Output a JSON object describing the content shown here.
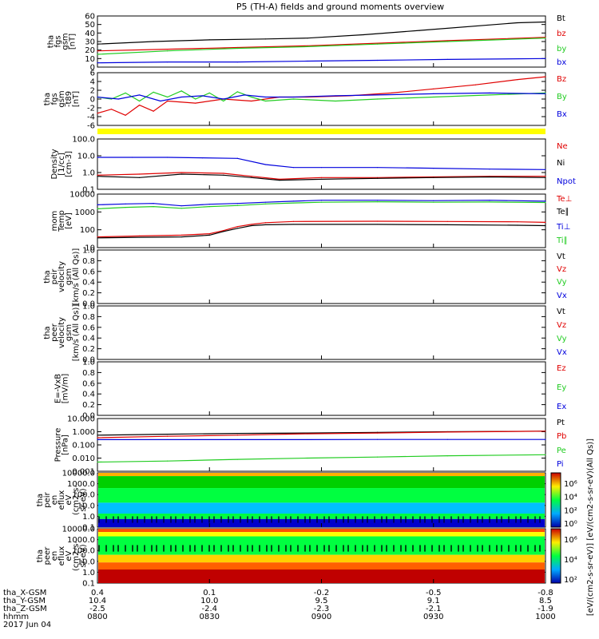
{
  "title": "P5 (TH-A) fields and ground moments overview",
  "colors": {
    "black": "#000000",
    "red": "#e00000",
    "green": "#22cc22",
    "blue": "#0000dd",
    "yellow": "#ffff00"
  },
  "chart_data": [
    {
      "type": "line",
      "id": "fgs_btot",
      "ylabel_lines": [
        "tha",
        "fgs",
        "gsm",
        "[nT]"
      ],
      "ylim": [
        0,
        60
      ],
      "yticks": [
        "60",
        "50",
        "40",
        "30",
        "20",
        "10",
        "0"
      ],
      "legend": [
        "Bt",
        "bz",
        "by",
        "bx"
      ],
      "series": [
        {
          "name": "Bt",
          "color": "black",
          "x": [
            0,
            8,
            16,
            24,
            30,
            38,
            46,
            60,
            64
          ],
          "y": [
            27,
            30,
            32,
            33,
            34,
            38,
            43,
            52,
            53
          ]
        },
        {
          "name": "bz",
          "color": "red",
          "x": [
            0,
            10,
            20,
            30,
            40,
            50,
            64
          ],
          "y": [
            19,
            21,
            23,
            25,
            28,
            31,
            35
          ]
        },
        {
          "name": "by",
          "color": "green",
          "x": [
            0,
            10,
            20,
            30,
            40,
            50,
            64
          ],
          "y": [
            15,
            19,
            22,
            24,
            27,
            30,
            34
          ]
        },
        {
          "name": "bx",
          "color": "blue",
          "x": [
            0,
            10,
            20,
            30,
            40,
            50,
            64
          ],
          "y": [
            5,
            6,
            6,
            7,
            8,
            9,
            10
          ]
        }
      ]
    },
    {
      "type": "line",
      "id": "fgs_comp",
      "ylabel_lines": [
        "tha",
        "fgs",
        "gsm",
        "-t89",
        "[nT]"
      ],
      "ylim": [
        -7,
        6
      ],
      "yticks": [
        "6",
        "4",
        "2",
        "0",
        "-2",
        "-4",
        "-6"
      ],
      "legend": [
        "Bz",
        "By",
        "Bx"
      ],
      "series": [
        {
          "name": "Bz",
          "color": "red",
          "x": [
            0,
            2,
            4,
            6,
            8,
            10,
            14,
            18,
            22,
            26,
            30,
            36,
            42,
            48,
            54,
            60,
            64
          ],
          "y": [
            -4,
            -3,
            -4.5,
            -2,
            -3.5,
            -1,
            -1.5,
            -0.5,
            -1,
            0,
            0,
            0.3,
            1,
            2,
            3,
            4.3,
            5
          ]
        },
        {
          "name": "By",
          "color": "green",
          "x": [
            0,
            2,
            4,
            6,
            8,
            10,
            12,
            14,
            16,
            18,
            20,
            22,
            24,
            28,
            34,
            40,
            48,
            56,
            64
          ],
          "y": [
            0,
            -0.5,
            1,
            -1,
            1.2,
            0,
            1.5,
            -0.5,
            1,
            -1,
            1.3,
            0,
            -1,
            -0.5,
            -1,
            -0.5,
            0,
            0.5,
            1
          ]
        },
        {
          "name": "Bx",
          "color": "blue",
          "x": [
            0,
            3,
            6,
            9,
            12,
            15,
            18,
            21,
            24,
            28,
            34,
            40,
            48,
            56,
            64
          ],
          "y": [
            0,
            -0.5,
            0.5,
            -1,
            0,
            0.3,
            -0.5,
            0.5,
            0,
            0,
            0.3,
            0.5,
            0.8,
            1,
            0.8
          ]
        }
      ]
    },
    {
      "type": "line",
      "id": "density",
      "ylabel_lines": [
        "Density",
        "[1/cc]",
        "[cm-3]"
      ],
      "log": true,
      "ylim": [
        0.1,
        100
      ],
      "yticks": [
        "100.0",
        "10.0",
        "1.0",
        "0.1"
      ],
      "legend": [
        "Ne",
        "Ni",
        "Npot"
      ],
      "series": [
        {
          "name": "Npot",
          "color": "blue",
          "x": [
            0,
            5,
            10,
            15,
            20,
            24,
            28,
            32,
            40,
            48,
            56,
            64
          ],
          "y": [
            8,
            8,
            8,
            7.5,
            7,
            3,
            2,
            2,
            2,
            1.8,
            1.6,
            1.5
          ]
        },
        {
          "name": "Ne",
          "color": "red",
          "x": [
            0,
            6,
            12,
            18,
            22,
            26,
            32,
            40,
            48,
            56,
            64
          ],
          "y": [
            0.7,
            0.8,
            1,
            0.9,
            0.6,
            0.4,
            0.5,
            0.5,
            0.55,
            0.6,
            0.6
          ]
        },
        {
          "name": "Ni",
          "color": "black",
          "x": [
            0,
            6,
            12,
            18,
            22,
            26,
            32,
            40,
            48,
            56,
            64
          ],
          "y": [
            0.6,
            0.5,
            0.8,
            0.7,
            0.5,
            0.35,
            0.4,
            0.45,
            0.5,
            0.55,
            0.5
          ]
        }
      ]
    },
    {
      "type": "line",
      "id": "mom_temp",
      "ylabel_lines": [
        "mom",
        "Temp",
        "[eV]"
      ],
      "log": true,
      "ylim": [
        10,
        10000
      ],
      "yticks": [
        "10000",
        "1000",
        "100",
        "10"
      ],
      "legend": [
        "Te⊥",
        "Te∥",
        "Ti⊥",
        "Ti∥"
      ],
      "series": [
        {
          "name": "Ti⊥",
          "color": "blue",
          "x": [
            0,
            4,
            8,
            12,
            16,
            20,
            24,
            28,
            32,
            40,
            48,
            56,
            64
          ],
          "y": [
            2500,
            2800,
            3000,
            2200,
            2700,
            3000,
            3500,
            4000,
            4500,
            4500,
            4300,
            4500,
            4000
          ]
        },
        {
          "name": "Ti∥",
          "color": "green",
          "x": [
            0,
            4,
            8,
            12,
            16,
            20,
            24,
            28,
            32,
            40,
            48,
            56,
            64
          ],
          "y": [
            1500,
            1800,
            2000,
            1600,
            2000,
            2300,
            2800,
            3200,
            3500,
            3700,
            3500,
            3600,
            3400
          ]
        },
        {
          "name": "Te⊥",
          "color": "red",
          "x": [
            0,
            6,
            12,
            16,
            18,
            20,
            22,
            24,
            28,
            40,
            50,
            60,
            64
          ],
          "y": [
            40,
            45,
            50,
            60,
            90,
            150,
            200,
            250,
            290,
            300,
            290,
            280,
            260
          ]
        },
        {
          "name": "Te∥",
          "color": "black",
          "x": [
            0,
            6,
            12,
            16,
            18,
            20,
            22,
            24,
            28,
            40,
            50,
            60,
            64
          ],
          "y": [
            35,
            38,
            40,
            50,
            80,
            120,
            170,
            190,
            200,
            200,
            190,
            180,
            170
          ]
        }
      ]
    },
    {
      "type": "line",
      "id": "peir_vel",
      "ylabel_lines": [
        "tha",
        "peir",
        "velocity",
        "gsm",
        "[km/s (All Qs)]"
      ],
      "ylim": [
        0,
        1
      ],
      "yticks": [
        "1.0",
        "0.8",
        "0.6",
        "0.4",
        "0.2",
        "0.0"
      ],
      "legend": [
        "Vt",
        "Vz",
        "Vy",
        "Vx"
      ],
      "series": []
    },
    {
      "type": "line",
      "id": "peer_vel",
      "ylabel_lines": [
        "tha",
        "peer",
        "velocity",
        "gsm",
        "[km/s (All Qs)]"
      ],
      "ylim": [
        0,
        1
      ],
      "yticks": [
        "1.0",
        "0.8",
        "0.6",
        "0.4",
        "0.2",
        "0.0"
      ],
      "legend": [
        "Vt",
        "Vz",
        "Vy",
        "Vx"
      ],
      "series": []
    },
    {
      "type": "line",
      "id": "efield",
      "ylabel_lines": [
        "E=-VxB",
        "[mV/m]"
      ],
      "ylim": [
        0,
        1
      ],
      "yticks": [
        "1.0",
        "0.8",
        "0.6",
        "0.4",
        "0.2",
        "0.0"
      ],
      "legend": [
        "Ez",
        "Ey",
        "Ex"
      ],
      "series": []
    },
    {
      "type": "line",
      "id": "pressure",
      "ylabel_lines": [
        "Pressure",
        "[nPa]"
      ],
      "log": true,
      "ylim": [
        0.001,
        10
      ],
      "yticks": [
        "10.000",
        "1.000",
        "0.100",
        "0.010",
        "0.001"
      ],
      "legend": [
        "Pt",
        "Pb",
        "Pe",
        "Pi"
      ],
      "series": [
        {
          "name": "Pt",
          "color": "black",
          "x": [
            0,
            10,
            20,
            30,
            40,
            50,
            64
          ],
          "y": [
            0.55,
            0.65,
            0.75,
            0.8,
            0.9,
            1.0,
            1.1
          ]
        },
        {
          "name": "Pb",
          "color": "red",
          "x": [
            0,
            10,
            20,
            30,
            40,
            50,
            64
          ],
          "y": [
            0.35,
            0.45,
            0.55,
            0.7,
            0.8,
            0.95,
            1.1
          ]
        },
        {
          "name": "Pi",
          "color": "blue",
          "x": [
            0,
            10,
            20,
            30,
            40,
            50,
            64
          ],
          "y": [
            0.25,
            0.25,
            0.25,
            0.25,
            0.26,
            0.26,
            0.26
          ]
        },
        {
          "name": "Pe",
          "color": "green",
          "x": [
            0,
            10,
            20,
            30,
            40,
            50,
            64
          ],
          "y": [
            0.005,
            0.006,
            0.008,
            0.01,
            0.012,
            0.015,
            0.018
          ]
        }
      ]
    },
    {
      "type": "heatmap",
      "id": "peir_en",
      "ylabel_lines": [
        "tha",
        "peir",
        "en",
        "eflux",
        "eV",
        "(cm2-s-",
        "sr-eV)"
      ],
      "yticks": [
        "10000.0",
        "1000.0",
        "100.0",
        "10.0",
        "1.0",
        "0.1"
      ]
    },
    {
      "type": "heatmap",
      "id": "peer_en",
      "ylabel_lines": [
        "tha",
        "peer",
        "en",
        "eflux",
        "eV",
        "(cm2-s-",
        "sr-eV)"
      ],
      "yticks": [
        "10000.0",
        "1000.0",
        "100.0",
        "10.0",
        "1.0",
        "0.1"
      ]
    }
  ],
  "colorbar": {
    "label": "[eV/(cm2-s-sr-eV)] [eV/(cm2-s-sr-eV)(All Qs)]",
    "ticks_top": [
      "10⁶",
      "10⁴",
      "10²",
      "10⁰"
    ],
    "ticks_bottom": [
      "10⁶",
      "10⁴",
      "10²"
    ]
  },
  "xaxis": {
    "rows": [
      {
        "label": "tha_X-GSM",
        "values": [
          "0.4",
          "0.1",
          "-0.2",
          "-0.5",
          "-0.8"
        ]
      },
      {
        "label": "tha_Y-GSM",
        "values": [
          "10.4",
          "10.0",
          "9.5",
          "9.1",
          "8.5"
        ]
      },
      {
        "label": "tha_Z-GSM",
        "values": [
          "-2.5",
          "-2.4",
          "-2.3",
          "-2.1",
          "-1.9"
        ]
      },
      {
        "label": "hhmm",
        "values": [
          "0800",
          "0830",
          "0900",
          "0930",
          "1000"
        ]
      }
    ],
    "date": "2017 Jun 04"
  }
}
